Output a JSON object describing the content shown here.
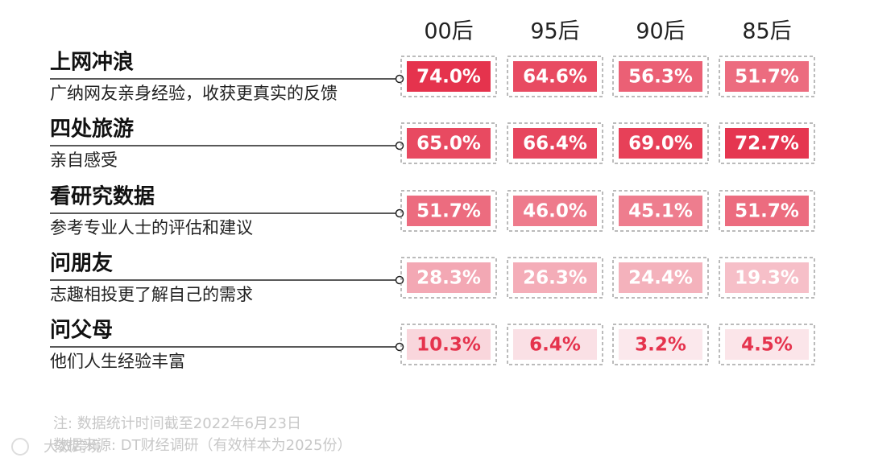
{
  "chart_data": {
    "type": "heatmap",
    "columns": [
      "00后",
      "95后",
      "90后",
      "85后"
    ],
    "categories": [
      "上网冲浪",
      "四处旅游",
      "看研究数据",
      "问朋友",
      "问父母"
    ],
    "descriptions": [
      "广纳网友亲身经验，收获更真实的反馈",
      "亲自感受",
      "参考专业人士的评估和建议",
      "志趣相投更了解自己的需求",
      "他们人生经验丰富"
    ],
    "values": [
      [
        74.0,
        64.6,
        56.3,
        51.7
      ],
      [
        65.0,
        66.4,
        69.0,
        72.7
      ],
      [
        51.7,
        46.0,
        45.1,
        51.7
      ],
      [
        28.3,
        26.3,
        24.4,
        19.3
      ],
      [
        10.3,
        6.4,
        3.2,
        4.5
      ]
    ],
    "value_labels": [
      [
        "74.0%",
        "64.6%",
        "56.3%",
        "51.7%"
      ],
      [
        "65.0%",
        "66.4%",
        "69.0%",
        "72.7%"
      ],
      [
        "51.7%",
        "46.0%",
        "45.1%",
        "51.7%"
      ],
      [
        "28.3%",
        "26.3%",
        "24.4%",
        "19.3%"
      ],
      [
        "10.3%",
        "6.4%",
        "3.2%",
        "4.5%"
      ]
    ],
    "color": "#e5334d",
    "notes": [
      "注: 数据统计时间截至2022年6月23日",
      "数据来源: DT财经调研（有效样本为2025份）"
    ],
    "watermark": "大数跨境"
  }
}
